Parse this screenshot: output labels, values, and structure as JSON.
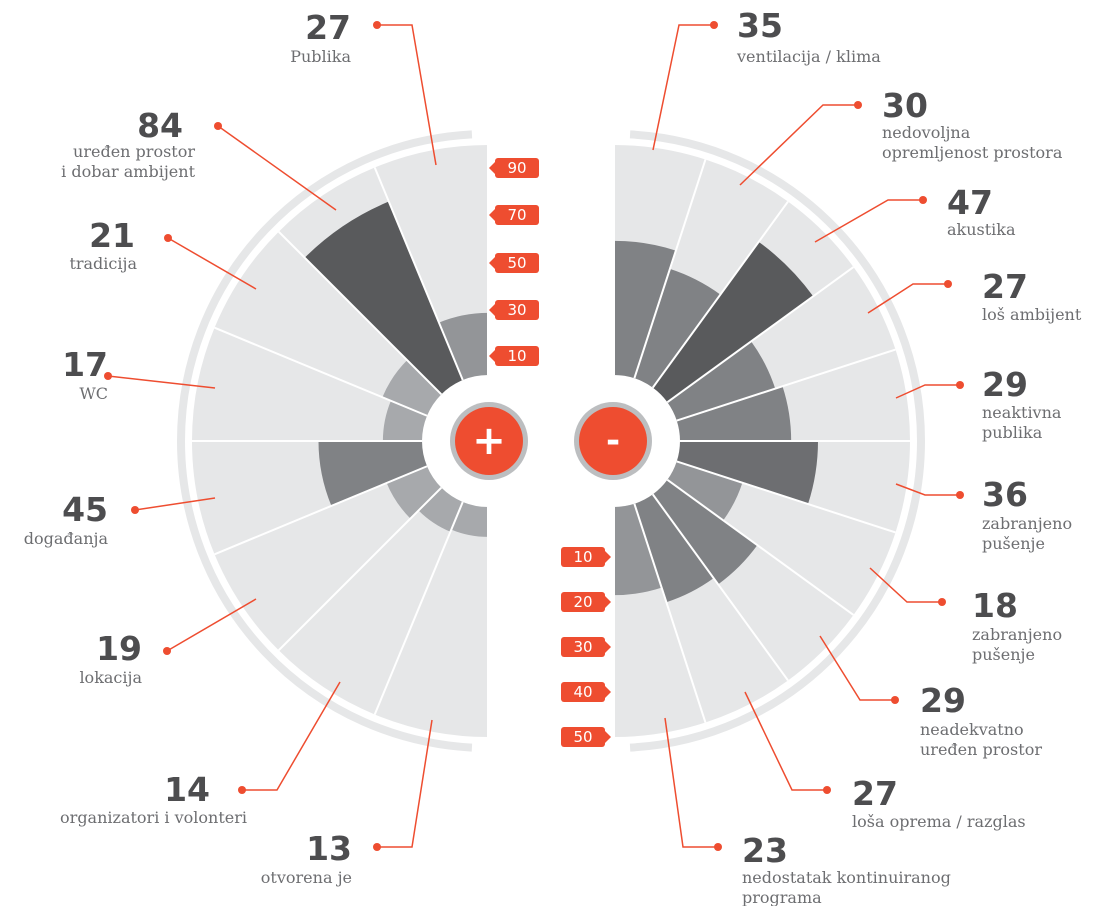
{
  "colors": {
    "accent": "#ee4d30",
    "sector_bg": "#e6e7e8",
    "ring": "#e6e7e8",
    "divider": "#ffffff",
    "value_shades": [
      "#595a5c",
      "#6d6e71",
      "#808285",
      "#939598",
      "#a7a9ac",
      "#bcbec0"
    ],
    "number_text": "#4d4d4f",
    "label_text": "#6d6e71",
    "center_ring": "#bcbec0"
  },
  "chart_data": [
    {
      "type": "polar-bar",
      "sign": "+",
      "ticks": [
        "90",
        "70",
        "50",
        "30",
        "10"
      ],
      "categories": [
        {
          "value": "27",
          "label": [
            "Publika"
          ]
        },
        {
          "value": "84",
          "label": [
            "uređen prostor",
            "i dobar ambijent"
          ]
        },
        {
          "value": "21",
          "label": [
            "tradicija"
          ]
        },
        {
          "value": "17",
          "label": [
            "WC"
          ]
        },
        {
          "value": "45",
          "label": [
            "događanja"
          ]
        },
        {
          "value": "19",
          "label": [
            "lokacija"
          ]
        },
        {
          "value": "14",
          "label": [
            "organizatori i volonteri"
          ]
        },
        {
          "value": "13",
          "label": [
            "otvorena je"
          ]
        }
      ]
    },
    {
      "type": "polar-bar",
      "sign": "-",
      "ticks": [
        "10",
        "20",
        "30",
        "40",
        "50"
      ],
      "categories": [
        {
          "value": "35",
          "label": [
            "ventilacija / klima"
          ]
        },
        {
          "value": "30",
          "label": [
            "nedovoljna",
            "opremljenost prostora"
          ]
        },
        {
          "value": "47",
          "label": [
            "akustika"
          ]
        },
        {
          "value": "27",
          "label": [
            "loš ambijent"
          ]
        },
        {
          "value": "29",
          "label": [
            "neaktivna",
            "publika"
          ]
        },
        {
          "value": "36",
          "label": [
            "zabranjeno",
            "pušenje"
          ]
        },
        {
          "value": "18",
          "label": [
            "zabranjeno",
            "pušenje"
          ]
        },
        {
          "value": "29",
          "label": [
            "neadekvatno",
            "uređen prostor"
          ]
        },
        {
          "value": "27",
          "label": [
            "loša oprema / razglas"
          ]
        },
        {
          "value": "23",
          "label": [
            "nedostatak kontinuiranog",
            "programa"
          ]
        }
      ]
    }
  ]
}
